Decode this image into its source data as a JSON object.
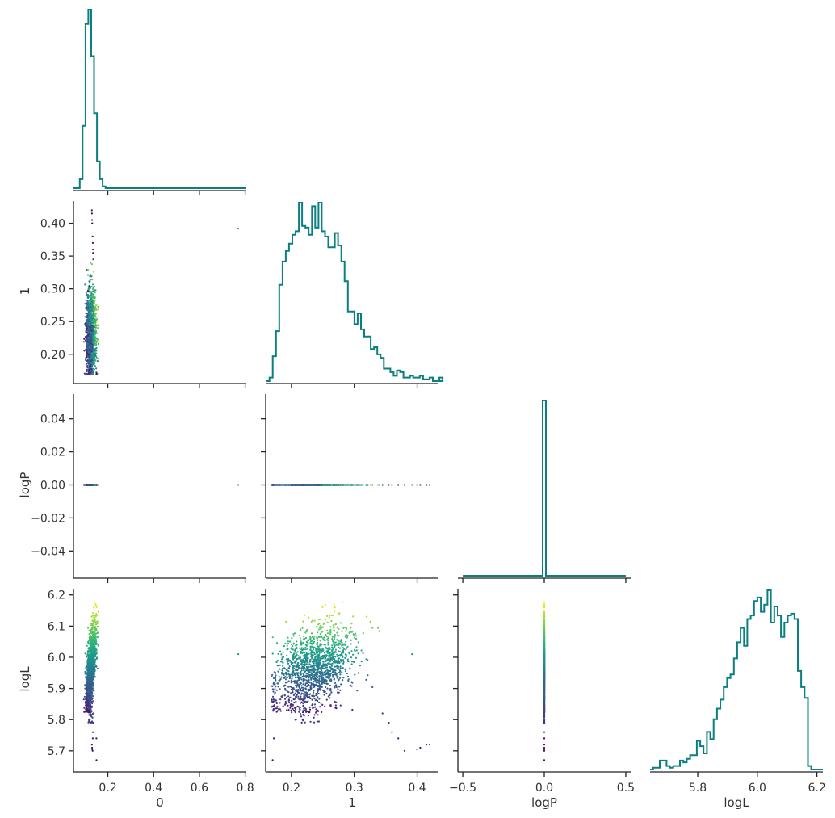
{
  "chart_data": {
    "type": "scatter",
    "layout": "corner",
    "variables": [
      "0",
      "1",
      "logP",
      "logL"
    ],
    "axes": {
      "0": {
        "ticks": [
          "0.2",
          "0.4",
          "0.6",
          "0.8"
        ],
        "tick_values": [
          0.2,
          0.4,
          0.6,
          0.8
        ],
        "range": [
          0.05,
          0.805
        ]
      },
      "1": {
        "ticks": [
          "0.20",
          "0.25",
          "0.30",
          "0.35",
          "0.40"
        ],
        "tick_values": [
          0.2,
          0.25,
          0.3,
          0.35,
          0.4
        ],
        "x_ticks": [
          "0.2",
          "0.3",
          "0.4"
        ],
        "x_tick_values": [
          0.2,
          0.3,
          0.4
        ],
        "range": [
          0.159,
          0.434
        ]
      },
      "logP": {
        "ticks": [
          "0.04",
          "0.02",
          "0.00",
          "−0.02",
          "−0.04"
        ],
        "tick_values": [
          0.04,
          0.02,
          0.0,
          -0.02,
          -0.04
        ],
        "x_ticks": [
          "−0.5",
          "0.0",
          "0.5"
        ],
        "x_tick_values": [
          -0.5,
          0.0,
          0.5
        ],
        "range": [
          -0.055,
          0.055
        ],
        "x_range": [
          -0.53,
          0.53
        ]
      },
      "logL": {
        "ticks": [
          "5.7",
          "5.8",
          "5.9",
          "6.0",
          "6.1",
          "6.2"
        ],
        "tick_values": [
          5.7,
          5.8,
          5.9,
          6.0,
          6.1,
          6.2
        ],
        "x_ticks": [
          "5.8",
          "6.0",
          "6.2"
        ],
        "x_tick_values": [
          5.8,
          6.0,
          6.2
        ],
        "range": [
          5.64,
          6.22
        ]
      }
    },
    "colormap": "viridis",
    "histograms": {
      "0": {
        "edges_start": 0.065,
        "bin_width": 0.0125,
        "counts": [
          0,
          0.05,
          0.35,
          0.92,
          1.0,
          0.74,
          0.42,
          0.15,
          0.05,
          0.01,
          0,
          0
        ]
      },
      "1": {
        "edges_start": 0.165,
        "bin_width": 0.0052,
        "counts": [
          0.02,
          0.14,
          0.28,
          0.54,
          0.67,
          0.73,
          0.77,
          0.82,
          0.84,
          1.0,
          0.87,
          0.86,
          0.82,
          0.98,
          0.86,
          1.0,
          0.84,
          0.81,
          0.75,
          0.75,
          0.83,
          0.76,
          0.67,
          0.56,
          0.39,
          0.39,
          0.32,
          0.38,
          0.29,
          0.25,
          0.25,
          0.18,
          0.19,
          0.15,
          0.13,
          0.07,
          0.07,
          0.05,
          0.03,
          0.06,
          0.05,
          0.02,
          0.02,
          0.03,
          0.02,
          0.02,
          0.03,
          0.01,
          0.01,
          0.02,
          0.0,
          0.0,
          0.02
        ]
      },
      "logP": {
        "edges_start": -0.5,
        "bin_width": 0.02,
        "spike_at": 0.0
      },
      "logL": {
        "edges_start": 5.65,
        "bin_width": 0.0113,
        "counts": [
          0.01,
          0.01,
          0.05,
          0.05,
          0.02,
          0.01,
          0.02,
          0.02,
          0.05,
          0.04,
          0.06,
          0.08,
          0.08,
          0.16,
          0.13,
          0.09,
          0.21,
          0.17,
          0.28,
          0.34,
          0.39,
          0.46,
          0.51,
          0.53,
          0.62,
          0.71,
          0.79,
          0.69,
          0.84,
          0.86,
          0.94,
          0.96,
          0.88,
          0.92,
          1.0,
          0.82,
          0.91,
          0.86,
          0.74,
          0.82,
          0.86,
          0.87,
          0.84,
          0.55,
          0.46,
          0.4,
          0.02,
          0.0
        ]
      }
    },
    "scatter": {
      "outlier": {
        "x0": 0.77,
        "x1": 0.392,
        "logP": 0.0,
        "logL": 6.01
      },
      "notes": ""
    },
    "title": "",
    "grid": false
  }
}
